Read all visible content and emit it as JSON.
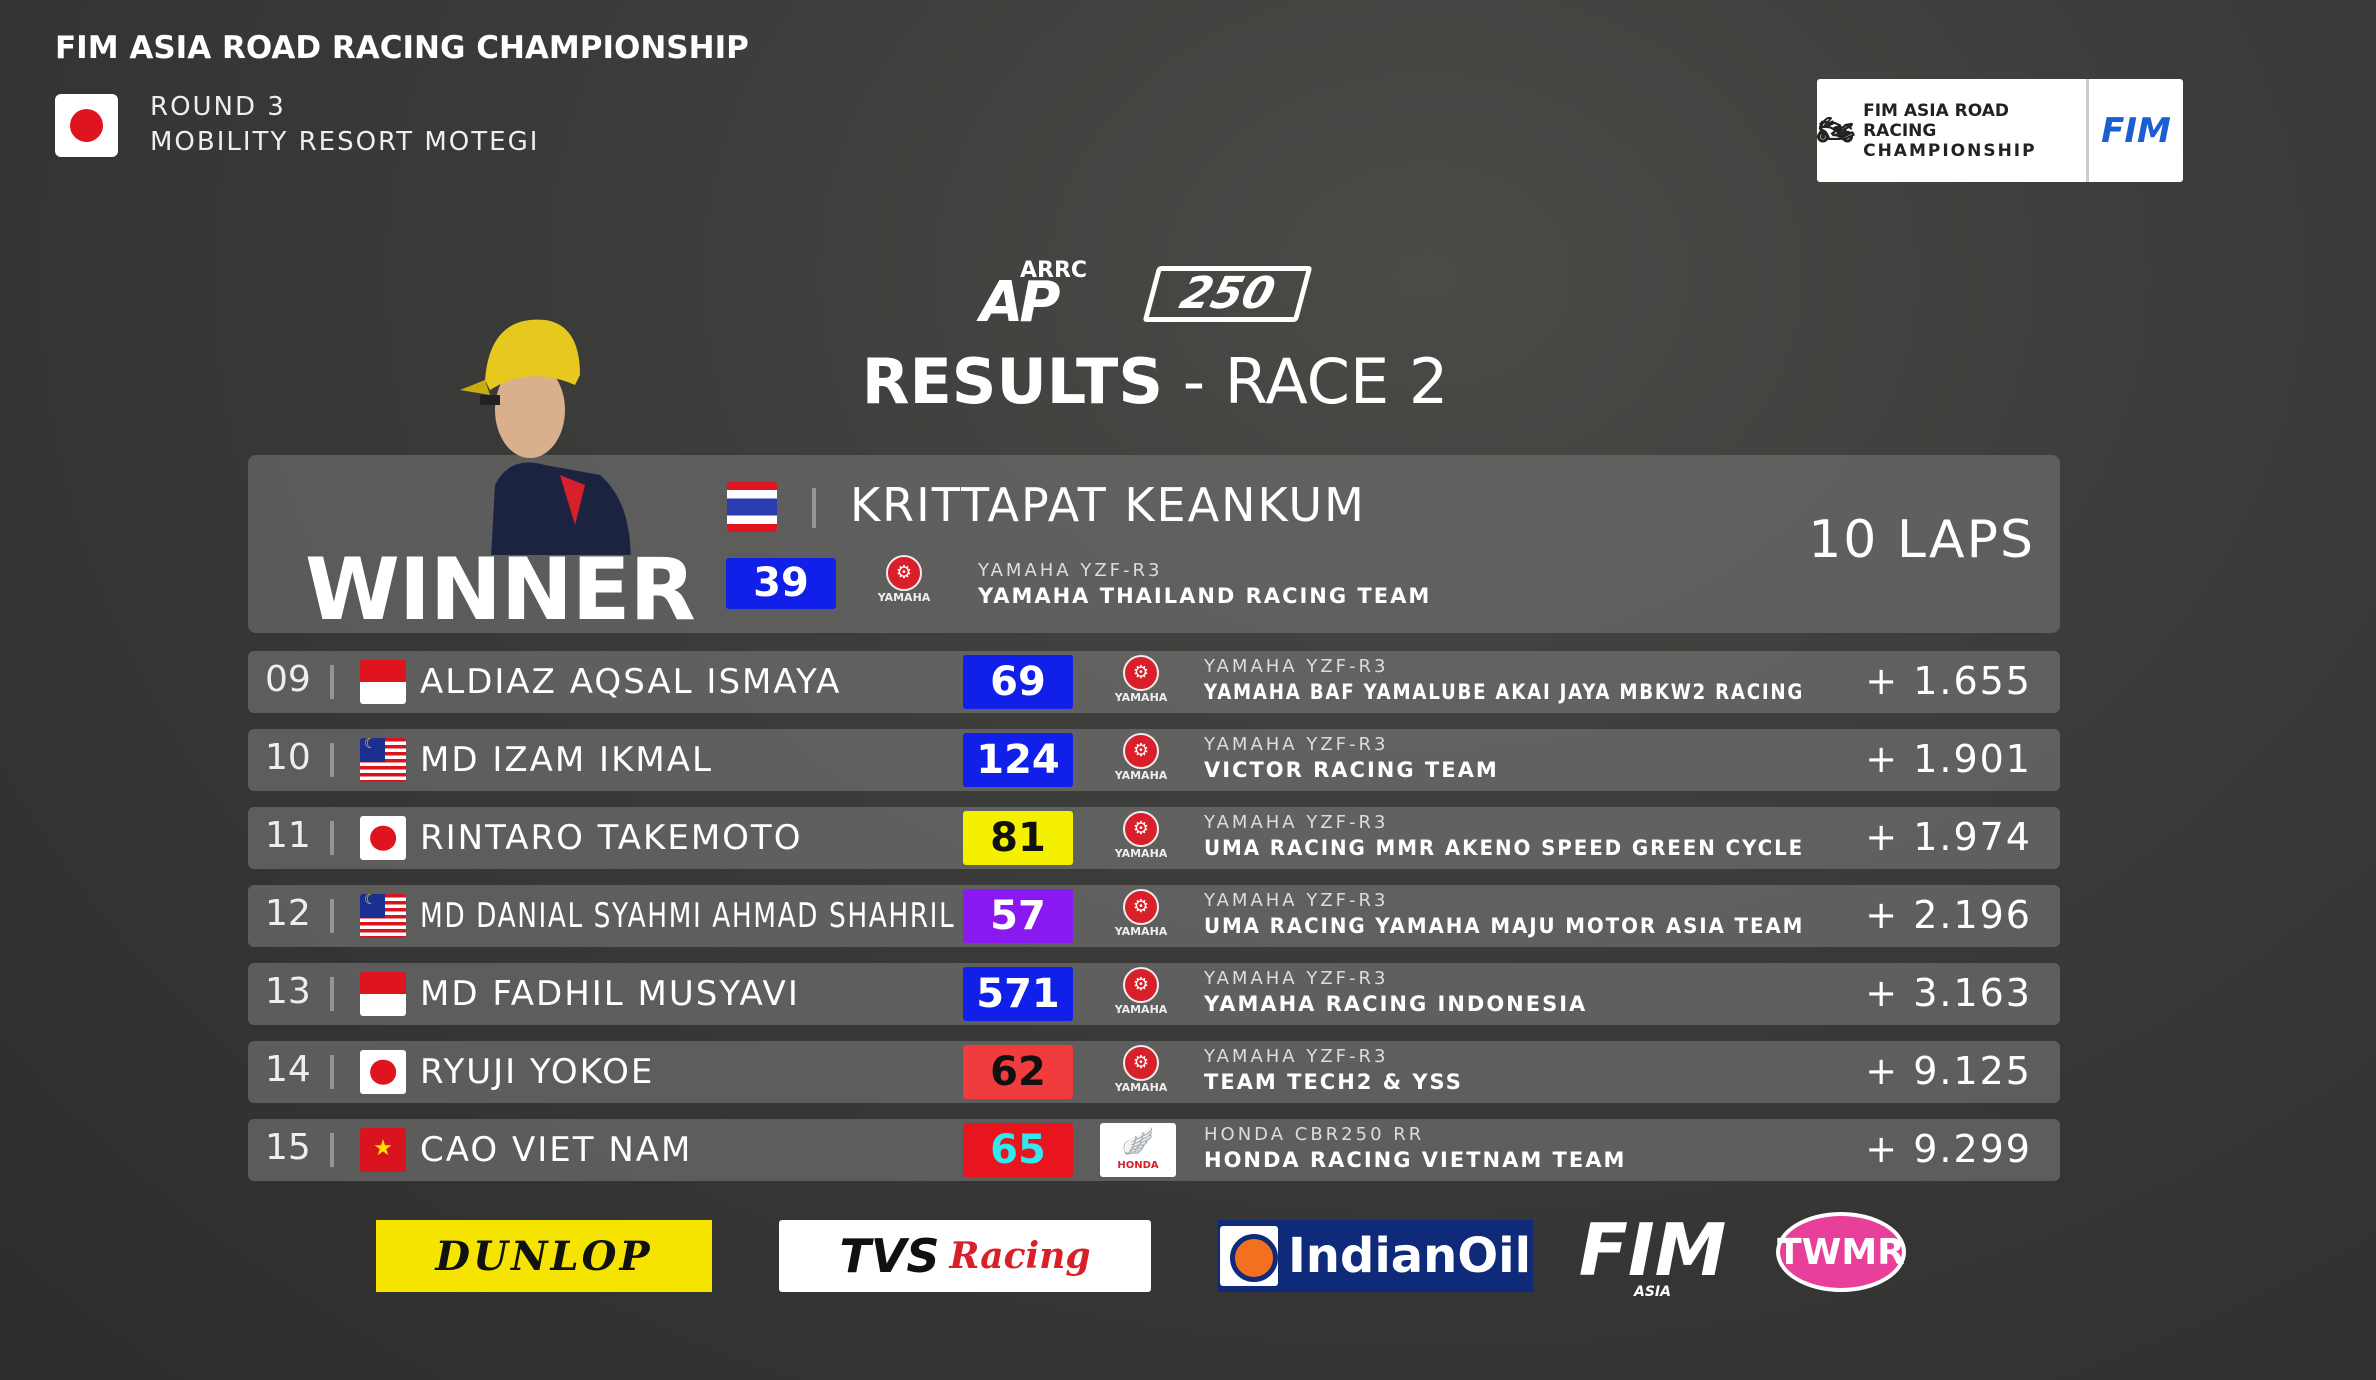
{
  "header": {
    "championship": "FIM ASIA ROAD RACING CHAMPIONSHIP",
    "round": "ROUND 3",
    "venue": "MOBILITY RESORT MOTEGI",
    "venue_flag": "japan-flag"
  },
  "logo_box": {
    "line1": "FIM ASIA ROAD RACING",
    "line2": "CHAMPIONSHIP",
    "fim": "FIM"
  },
  "class_logo": {
    "arrc": "ARRC",
    "ap": "AP",
    "cc": "250"
  },
  "title": {
    "bold": "RESULTS",
    "light": " - RACE 2"
  },
  "winner": {
    "label": "WINNER",
    "name": "KRITTAPAT KEANKUM",
    "flag": "thailand",
    "number": "39",
    "number_bg": "#1020e8",
    "number_color": "#ffffff",
    "manufacturer": "YAMAHA",
    "model": "YAMAHA YZF-R3",
    "team": "YAMAHA THAILAND RACING TEAM",
    "laps": "10 LAPS"
  },
  "rows": [
    {
      "pos": "09",
      "flag": "indonesia",
      "name": "ALDIAZ AQSAL ISMAYA",
      "number": "69",
      "number_bg": "#1020e8",
      "number_color": "#ffffff",
      "manufacturer": "YAMAHA",
      "model": "YAMAHA YZF-R3",
      "team": "YAMAHA BAF YAMALUBE AKAI JAYA MBKW2 RACING",
      "gap": "+ 1.655"
    },
    {
      "pos": "10",
      "flag": "malaysia",
      "name": "MD IZAM IKMAL",
      "number": "124",
      "number_bg": "#1020e8",
      "number_color": "#ffffff",
      "manufacturer": "YAMAHA",
      "model": "YAMAHA YZF-R3",
      "team": "VICTOR RACING TEAM",
      "gap": "+ 1.901"
    },
    {
      "pos": "11",
      "flag": "japan",
      "name": "RINTARO TAKEMOTO",
      "number": "81",
      "number_bg": "#f5f000",
      "number_color": "#111111",
      "manufacturer": "YAMAHA",
      "model": "YAMAHA YZF-R3",
      "team": "UMA RACING MMR AKENO SPEED GREEN CYCLE",
      "gap": "+ 1.974"
    },
    {
      "pos": "12",
      "flag": "malaysia",
      "name": "MD DANIAL SYAHMI AHMAD SHAHRIL",
      "number": "57",
      "number_bg": "#8a18f0",
      "number_color": "#ffffff",
      "manufacturer": "YAMAHA",
      "model": "YAMAHA YZF-R3",
      "team": "UMA RACING YAMAHA MAJU MOTOR ASIA TEAM",
      "gap": "+ 2.196"
    },
    {
      "pos": "13",
      "flag": "indonesia",
      "name": "MD FADHIL MUSYAVI",
      "number": "571",
      "number_bg": "#1020e8",
      "number_color": "#ffffff",
      "manufacturer": "YAMAHA",
      "model": "YAMAHA YZF-R3",
      "team": "YAMAHA RACING INDONESIA",
      "gap": "+ 3.163"
    },
    {
      "pos": "14",
      "flag": "japan",
      "name": "RYUJI YOKOE",
      "number": "62",
      "number_bg": "#f03c3c",
      "number_color": "#111111",
      "manufacturer": "YAMAHA",
      "model": "YAMAHA YZF-R3",
      "team": "TEAM TECH2 & YSS",
      "gap": "+ 9.125"
    },
    {
      "pos": "15",
      "flag": "vietnam",
      "name": "CAO VIET NAM",
      "number": "65",
      "number_bg": "#e8141e",
      "number_color": "#30e8f0",
      "manufacturer": "HONDA",
      "model": "HONDA CBR250 RR",
      "team": "HONDA RACING VIETNAM TEAM",
      "gap": "+ 9.299"
    }
  ],
  "sponsors": {
    "dunlop": "DUNLOP",
    "tvs": "TVS",
    "tvs_racing": "Racing",
    "indianoil": "IndianOil",
    "fim": "FIM",
    "fim_sub": "ASIA",
    "twmr": "TWMR"
  }
}
